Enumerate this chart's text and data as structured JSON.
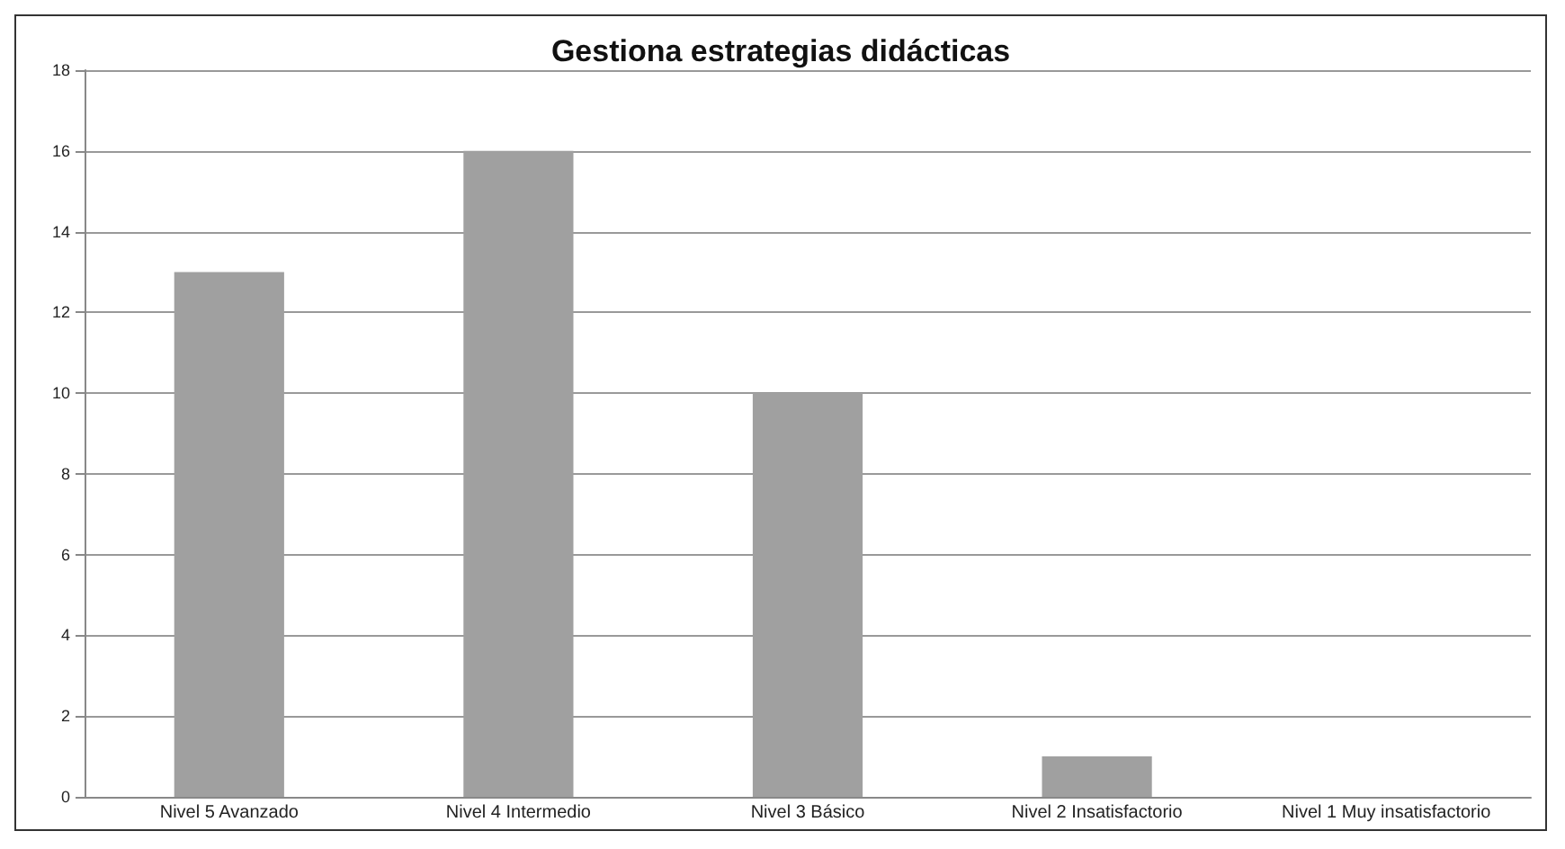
{
  "chart_data": {
    "type": "bar",
    "title": "Gestiona estrategias didácticas",
    "categories": [
      "Nivel 5 Avanzado",
      "Nivel 4 Intermedio",
      "Nivel 3 Básico",
      "Nivel 2 Insatisfactorio",
      "Nivel 1 Muy insatisfactorio"
    ],
    "values": [
      13,
      16,
      10,
      1,
      0
    ],
    "color": "#a0a0a0",
    "ylim": [
      0,
      18
    ],
    "yticks": [
      0,
      2,
      4,
      6,
      8,
      10,
      12,
      14,
      16,
      18
    ],
    "grid": "y"
  }
}
